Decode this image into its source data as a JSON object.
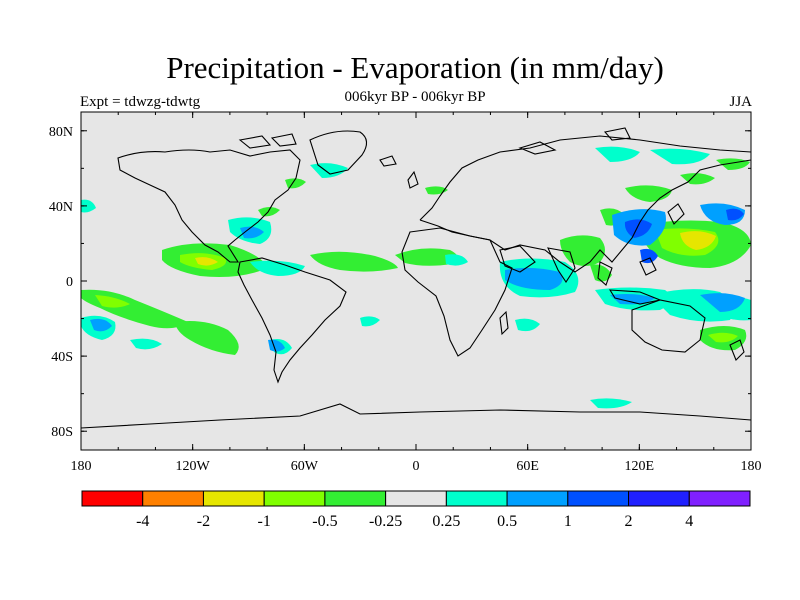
{
  "title": "Precipitation - Evaporation (in mm/day)",
  "subtitle": "006kyr BP - 006kyr BP",
  "experiment": "Expt = tdwzg-tdwtg",
  "season": "JJA",
  "axes": {
    "x_ticks": [
      "180",
      "120W",
      "60W",
      "0",
      "60E",
      "120E",
      "180"
    ],
    "y_ticks": [
      "80N",
      "40N",
      "0",
      "40S",
      "80S"
    ]
  },
  "colorbar": {
    "colors": [
      "#ff0000",
      "#ff8000",
      "#e6e600",
      "#80ff00",
      "#33ee33",
      "#e6e6e6",
      "#00ffcc",
      "#00a0ff",
      "#0050ff",
      "#2020ff",
      "#8020ff"
    ],
    "labels": [
      "-4",
      "-2",
      "-1",
      "-0.5",
      "-0.25",
      "0.25",
      "0.5",
      "1",
      "2",
      "4"
    ]
  },
  "colors": {
    "background": "#e6e6e6",
    "coast": "#000000"
  }
}
